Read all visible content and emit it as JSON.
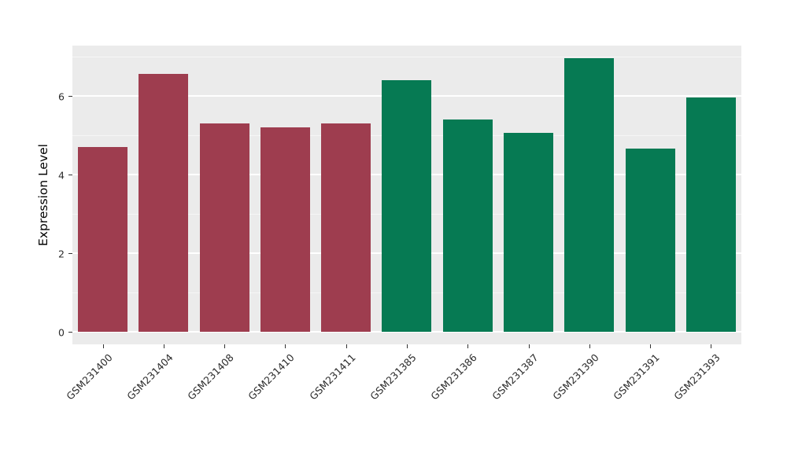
{
  "chart_data": {
    "type": "bar",
    "title": "",
    "xlabel": "",
    "ylabel": "Expression Level",
    "ylim": [
      0,
      7.3
    ],
    "y_major_ticks": [
      0,
      2,
      4,
      6
    ],
    "y_minor_ticks": [
      1,
      3,
      5,
      7
    ],
    "grid": true,
    "legend_position": "none",
    "categories": [
      "GSM231400",
      "GSM231404",
      "GSM231408",
      "GSM231410",
      "GSM231411",
      "GSM231385",
      "GSM231386",
      "GSM231387",
      "GSM231390",
      "GSM231391",
      "GSM231393"
    ],
    "values": [
      4.7,
      6.55,
      5.3,
      5.2,
      5.3,
      6.4,
      5.4,
      5.05,
      6.95,
      4.65,
      5.95
    ],
    "groups": [
      "group1",
      "group1",
      "group1",
      "group1",
      "group1",
      "group2",
      "group2",
      "group2",
      "group2",
      "group2",
      "group2"
    ],
    "group_colors": {
      "group1": "#9e3d4f",
      "group2": "#067a53"
    },
    "panel_background": "#ebebeb",
    "gridline_color": "#ffffff"
  }
}
